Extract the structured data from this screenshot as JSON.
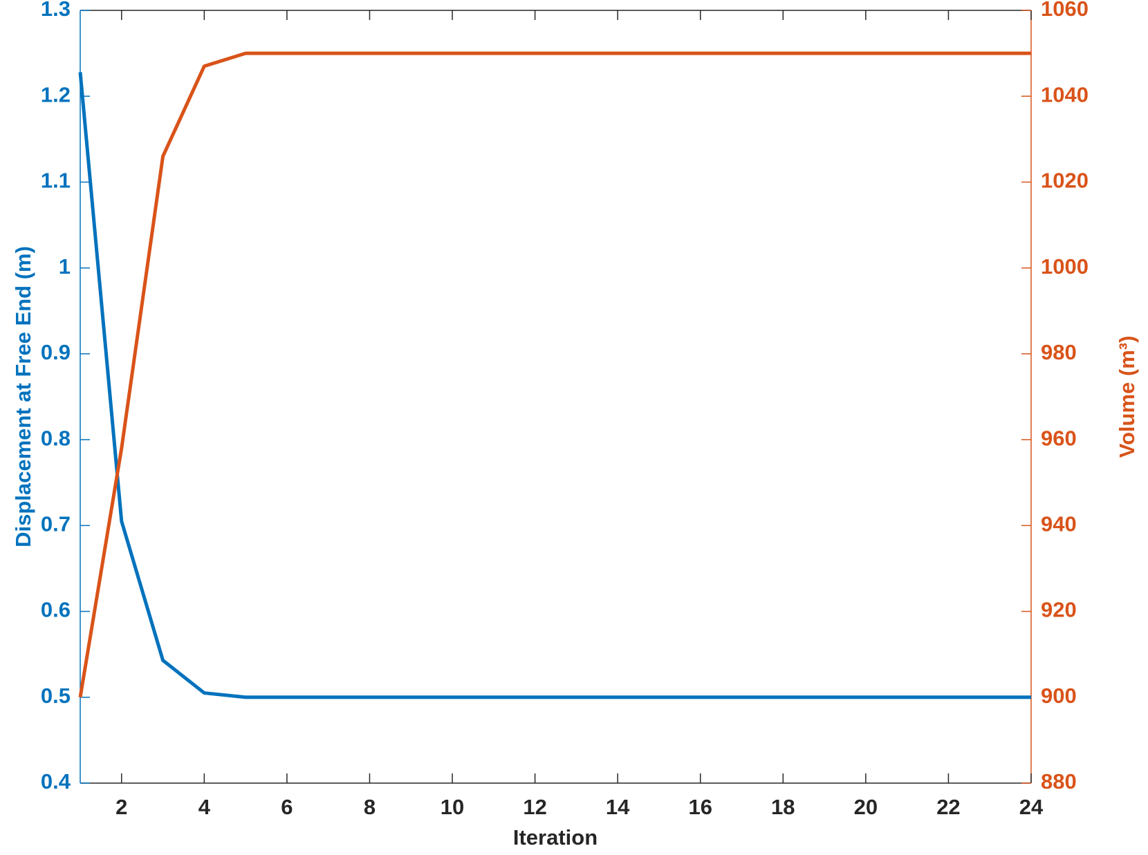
{
  "chart_data": {
    "type": "line",
    "x_label": "Iteration",
    "y_label": "Displacement at Free End (m)",
    "y2_label": "Volume (m³)",
    "x": [
      1,
      2,
      3,
      4,
      5,
      6,
      7,
      8,
      9,
      10,
      11,
      12,
      13,
      14,
      15,
      16,
      17,
      18,
      19,
      20,
      21,
      22,
      23,
      24
    ],
    "xlim": [
      1,
      24
    ],
    "xticks": [
      2,
      4,
      6,
      8,
      10,
      12,
      14,
      16,
      18,
      20,
      22,
      24
    ],
    "ylim": [
      0.4,
      1.3
    ],
    "yticks": [
      0.4,
      0.5,
      0.6,
      0.7,
      0.8,
      0.9,
      1,
      1.1,
      1.2,
      1.3
    ],
    "y2lim": [
      880,
      1060
    ],
    "y2ticks": [
      880,
      900,
      920,
      940,
      960,
      980,
      1000,
      1020,
      1040,
      1060
    ],
    "series": [
      {
        "name": "Displacement",
        "color": "#0072bd",
        "values": [
          1.228,
          0.705,
          0.543,
          0.505,
          0.5,
          0.5,
          0.5,
          0.5,
          0.5,
          0.5,
          0.5,
          0.5,
          0.5,
          0.5,
          0.5,
          0.5,
          0.5,
          0.5,
          0.5,
          0.5,
          0.5,
          0.5,
          0.5,
          0.5
        ]
      },
      {
        "name": "Volume",
        "color": "#d95319",
        "axis": "y2",
        "values": [
          900,
          958,
          1026,
          1047,
          1050,
          1050,
          1050,
          1050,
          1050,
          1050,
          1050,
          1050,
          1050,
          1050,
          1050,
          1050,
          1050,
          1050,
          1050,
          1050,
          1050,
          1050,
          1050,
          1050
        ]
      }
    ]
  }
}
